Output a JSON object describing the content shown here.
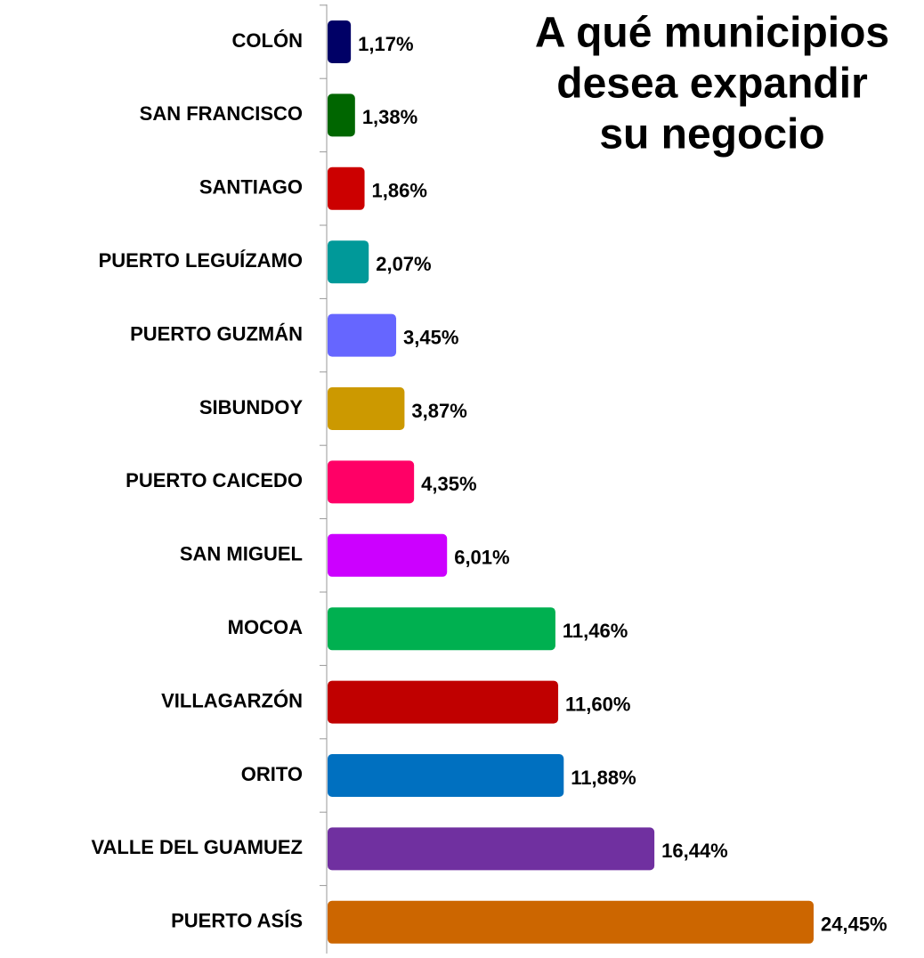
{
  "chart_data": {
    "type": "bar",
    "orientation": "horizontal",
    "title": [
      "A qué municipios",
      "desea expandir",
      "su negocio"
    ],
    "categories": [
      "COLÓN",
      "SAN FRANCISCO",
      "SANTIAGO",
      "PUERTO LEGUÍZAMO",
      "PUERTO GUZMÁN",
      "SIBUNDOY",
      "PUERTO CAICEDO",
      "SAN MIGUEL",
      "MOCOA",
      "VILLAGARZÓN",
      "ORITO",
      "VALLE DEL GUAMUEZ",
      "PUERTO ASÍS"
    ],
    "values": [
      1.17,
      1.38,
      1.86,
      2.07,
      3.45,
      3.87,
      4.35,
      6.01,
      11.46,
      11.6,
      11.88,
      16.44,
      24.45
    ],
    "value_labels": [
      "1,17%",
      "1,38%",
      "1,86%",
      "2,07%",
      "3,45%",
      "3,87%",
      "4,35%",
      "6,01%",
      "11,46%",
      "11,60%",
      "11,88%",
      "16,44%",
      "24,45%"
    ],
    "colors": [
      "#000066",
      "#006600",
      "#cc0000",
      "#009999",
      "#6666ff",
      "#cc9900",
      "#ff0066",
      "#cc00ff",
      "#00b050",
      "#c00000",
      "#0070c0",
      "#7030a0",
      "#cc6600"
    ]
  }
}
